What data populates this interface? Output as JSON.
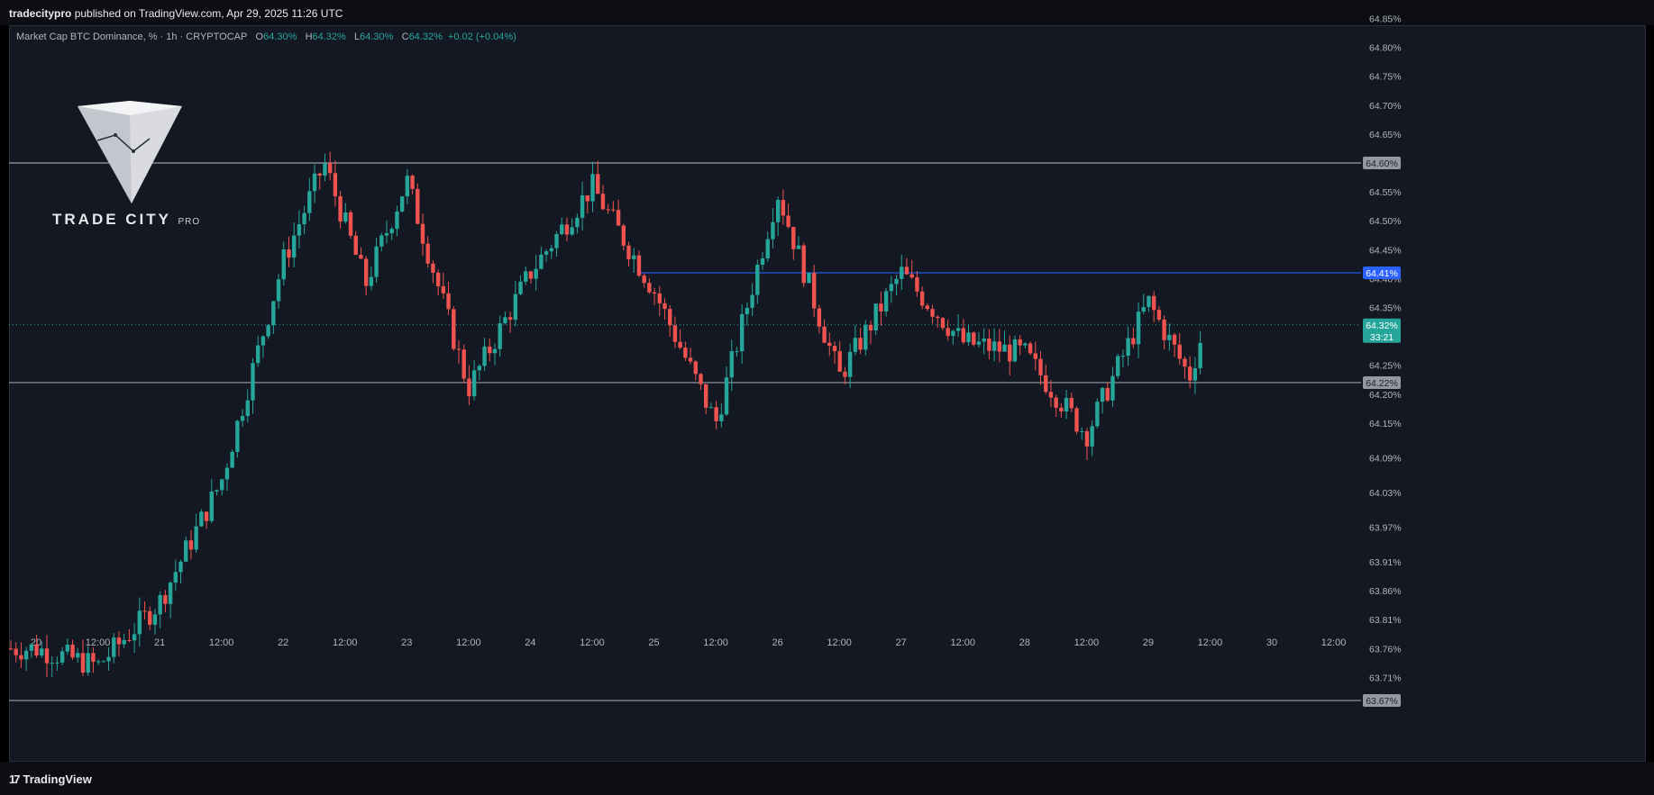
{
  "publisher": {
    "name": "tradecitypro",
    "text": "published on TradingView.com, Apr 29, 2025 11:26 UTC"
  },
  "legend": {
    "symbol": "Market Cap BTC Dominance, % · 1h · CRYPTOCAP",
    "o_label": "O",
    "o_value": "64.30%",
    "h_label": "H",
    "h_value": "64.32%",
    "l_label": "L",
    "l_value": "64.30%",
    "c_label": "C",
    "c_value": "64.32%",
    "change": "+0.02 (+0.04%)"
  },
  "watermark": {
    "brand": "TRADE CITY",
    "suffix": "PRO"
  },
  "footer": {
    "logo_text": "TradingView"
  },
  "colors": {
    "up": "#26a69a",
    "down": "#ef5350",
    "background": "#141823",
    "level_line": "#b2b5be",
    "blue_line": "#2962ff"
  },
  "chart_data": {
    "type": "candlestick",
    "timeframe": "1h",
    "ylim": [
      63.64,
      64.88
    ],
    "y_ticks": [
      "64.85%",
      "64.80%",
      "64.75%",
      "64.70%",
      "64.65%",
      "64.60%",
      "64.55%",
      "64.50%",
      "64.45%",
      "64.40%",
      "64.35%",
      "64.25%",
      "64.20%",
      "64.15%",
      "64.09%",
      "64.03%",
      "63.97%",
      "63.91%",
      "63.86%",
      "63.81%",
      "63.76%",
      "63.71%",
      "63.67%"
    ],
    "x_ticks": [
      "20",
      "12:00",
      "21",
      "12:00",
      "22",
      "12:00",
      "23",
      "12:00",
      "24",
      "12:00",
      "25",
      "12:00",
      "26",
      "12:00",
      "27",
      "12:00",
      "28",
      "12:00",
      "29",
      "12:00",
      "30",
      "12:00"
    ],
    "horizontal_levels": [
      {
        "value": 64.6,
        "label": "64.60%",
        "style": "gray"
      },
      {
        "value": 64.41,
        "label": "64.41%",
        "style": "blue"
      },
      {
        "value": 64.22,
        "label": "64.22%",
        "style": "gray"
      },
      {
        "value": 63.67,
        "label": "63.67%",
        "style": "gray"
      }
    ],
    "current_price": {
      "value": 64.32,
      "label": "64.32%",
      "countdown": "33:21"
    },
    "anchors": [
      {
        "time": "Apr 20 00:00",
        "price": 63.76
      },
      {
        "time": "Apr 20 12:00",
        "price": 63.73
      },
      {
        "time": "Apr 21 00:00",
        "price": 63.84
      },
      {
        "time": "Apr 21 12:00",
        "price": 64.05
      },
      {
        "time": "Apr 22 00:00",
        "price": 64.43
      },
      {
        "time": "Apr 22 08:00",
        "price": 64.6
      },
      {
        "time": "Apr 22 16:00",
        "price": 64.39
      },
      {
        "time": "Apr 23 00:00",
        "price": 64.57
      },
      {
        "time": "Apr 23 12:00",
        "price": 64.21
      },
      {
        "time": "Apr 24 00:00",
        "price": 64.41
      },
      {
        "time": "Apr 24 12:00",
        "price": 64.56
      },
      {
        "time": "Apr 25 00:00",
        "price": 64.38
      },
      {
        "time": "Apr 25 12:00",
        "price": 64.15
      },
      {
        "time": "Apr 26 00:00",
        "price": 64.55
      },
      {
        "time": "Apr 26 12:00",
        "price": 64.23
      },
      {
        "time": "Apr 27 00:00",
        "price": 64.41
      },
      {
        "time": "Apr 27 12:00",
        "price": 64.29
      },
      {
        "time": "Apr 28 00:00",
        "price": 64.27
      },
      {
        "time": "Apr 28 12:00",
        "price": 64.13
      },
      {
        "time": "Apr 29 00:00",
        "price": 64.36
      },
      {
        "time": "Apr 29 08:00",
        "price": 64.23
      },
      {
        "time": "Apr 29 11:00",
        "price": 64.32
      }
    ]
  }
}
